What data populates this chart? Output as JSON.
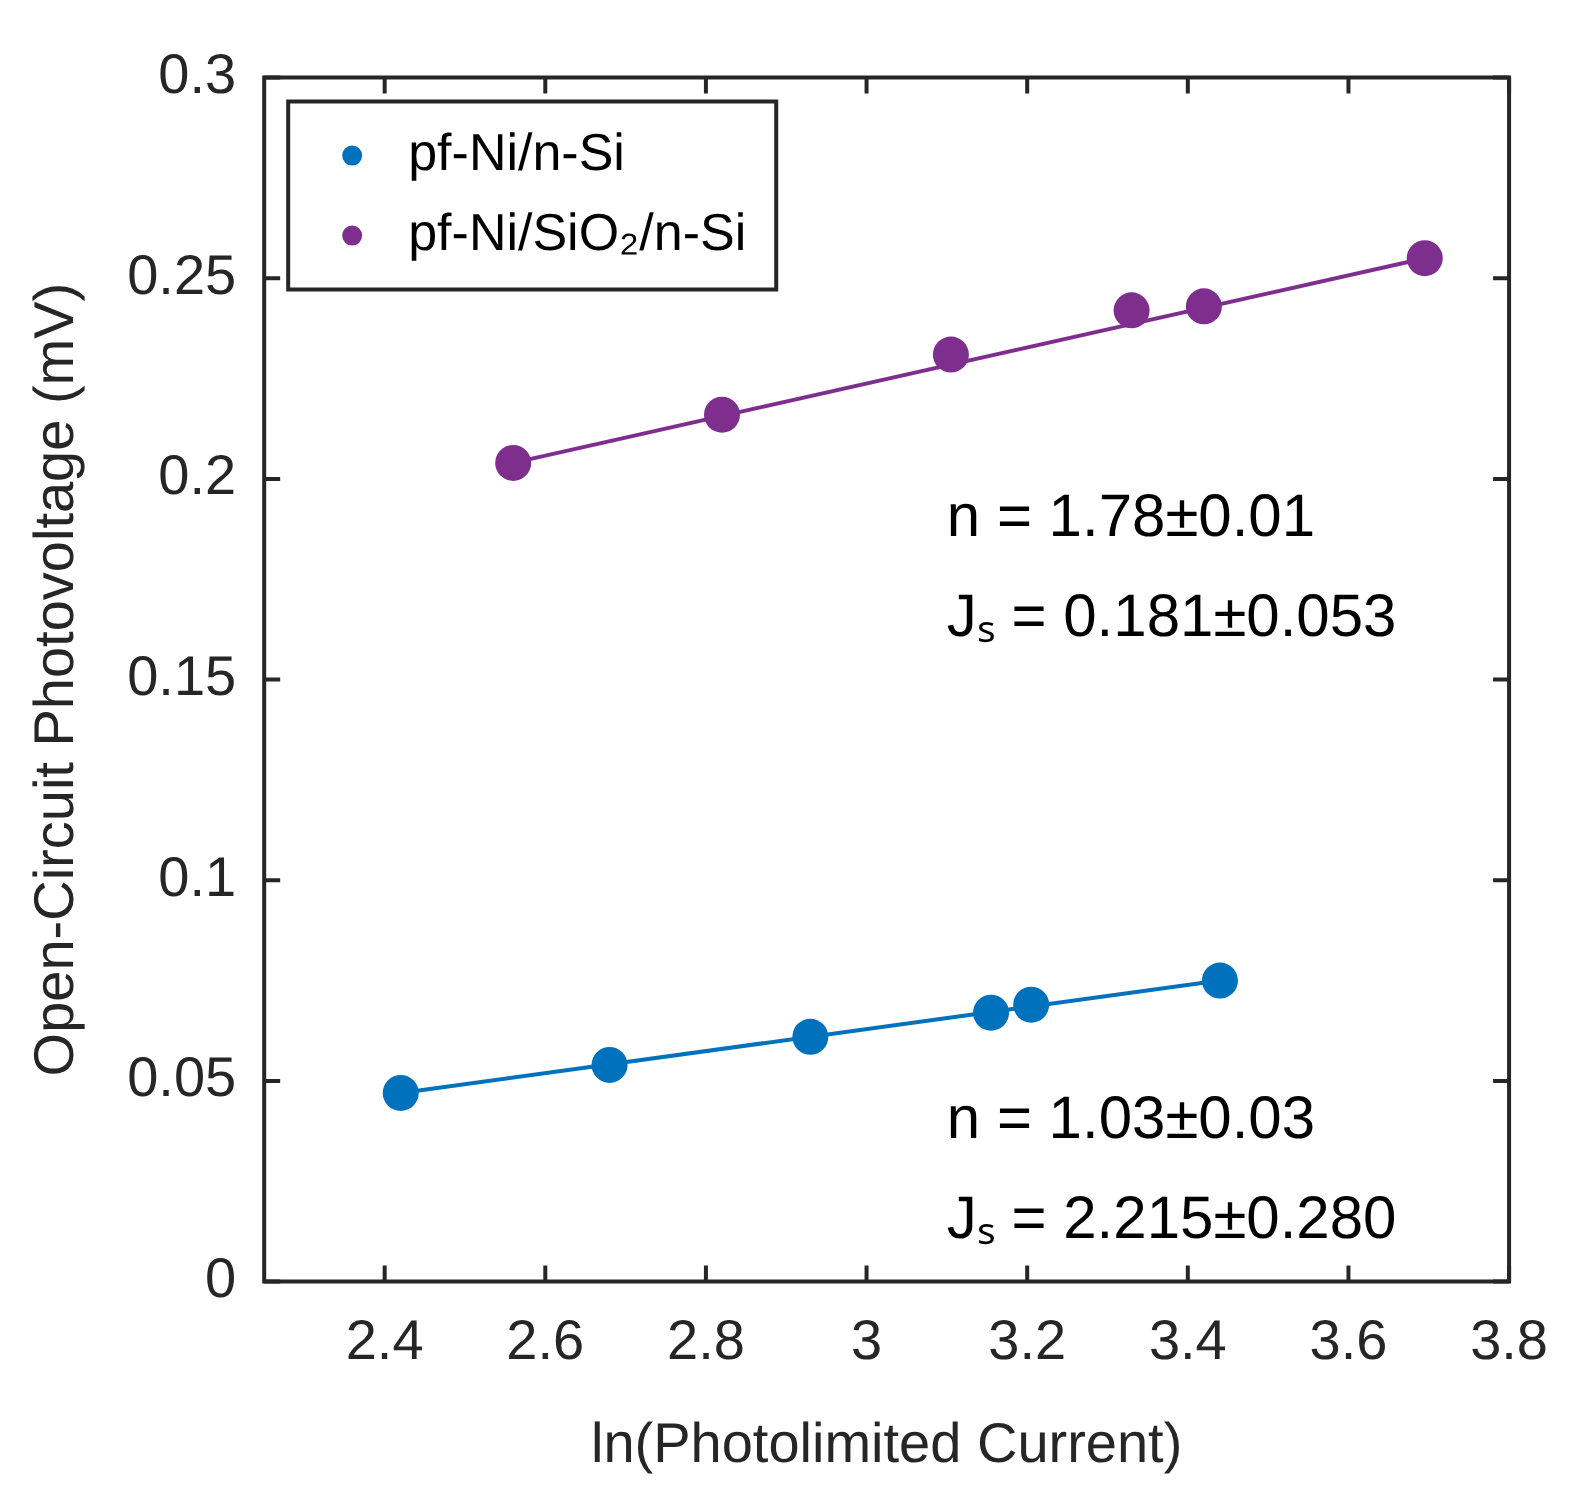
{
  "chart_data": {
    "type": "scatter",
    "xlabel": "ln(Photolimited Current)",
    "ylabel": "Open-Circuit Photovoltage (mV)",
    "series": [
      {
        "name": "pf-Ni/n-Si",
        "color": "#0072bd",
        "x": [
          2.42,
          2.68,
          2.93,
          3.155,
          3.205,
          3.44
        ],
        "values": [
          0.047,
          0.054,
          0.061,
          0.067,
          0.069,
          0.075
        ]
      },
      {
        "name": "pf-Ni/SiO₂/n-Si",
        "color": "#7e2f8e",
        "x": [
          2.56,
          2.82,
          3.105,
          3.33,
          3.42,
          3.695
        ],
        "values": [
          0.204,
          0.216,
          0.231,
          0.242,
          0.243,
          0.255
        ]
      },
      {
        "type": "line",
        "marker": "none",
        "color": "#0072bd",
        "x": [
          2.42,
          3.44
        ],
        "values": [
          0.047,
          0.075
        ]
      },
      {
        "type": "line",
        "marker": "none",
        "color": "#7e2f8e",
        "x": [
          2.56,
          3.695
        ],
        "values": [
          0.204,
          0.255
        ]
      }
    ],
    "xlim": [
      2.25,
      3.8
    ],
    "xticks": [
      2.4,
      2.6,
      2.8,
      3,
      3.2,
      3.4,
      3.6,
      3.8
    ],
    "ylim": [
      0,
      0.3
    ],
    "yticks": [
      0,
      0.05,
      0.1,
      0.15,
      0.2,
      0.25,
      0.3
    ],
    "annotations": [
      "n = 1.78±0.01",
      "Jₛ = 0.181±0.053",
      "n = 1.03±0.03",
      "Jₛ = 2.215±0.280"
    ],
    "legend": "top left",
    "grid": false,
    "marker": "circle"
  }
}
